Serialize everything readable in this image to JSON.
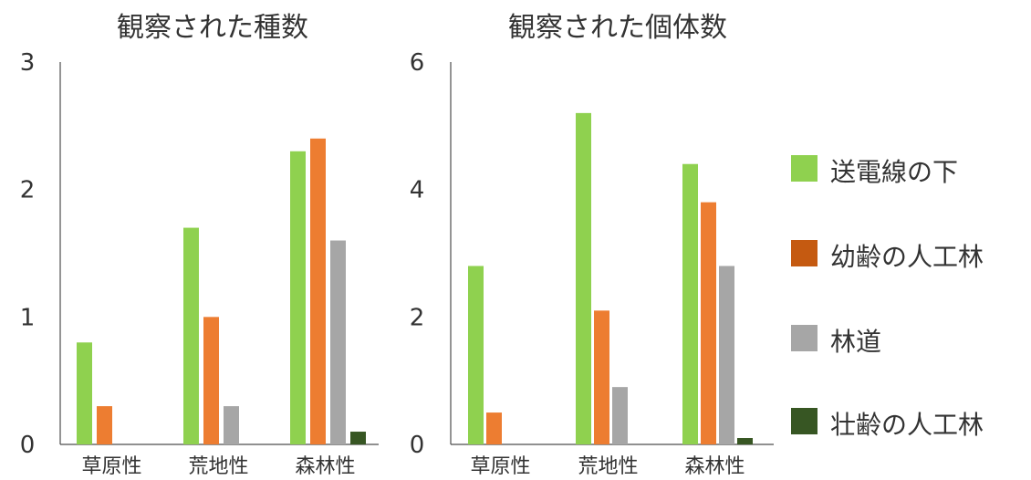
{
  "chart_data": [
    {
      "type": "bar",
      "title": "観察された種数",
      "categories": [
        "草原性",
        "荒地性",
        "森林性"
      ],
      "ylim": [
        0,
        3
      ],
      "yticks": [
        "0",
        "1",
        "2",
        "3"
      ],
      "series": [
        {
          "name": "送電線の下",
          "color": "#8fd14f",
          "values": [
            0.8,
            1.7,
            2.3
          ]
        },
        {
          "name": "幼齢の人工林",
          "color": "#ed7d31",
          "values": [
            0.3,
            1.0,
            2.4
          ]
        },
        {
          "name": "林道",
          "color": "#a6a6a6",
          "values": [
            0.0,
            0.3,
            1.6
          ]
        },
        {
          "name": "壮齢の人工林",
          "color": "#375623",
          "values": [
            0.0,
            0.0,
            0.1
          ]
        }
      ]
    },
    {
      "type": "bar",
      "title": "観察された個体数",
      "categories": [
        "草原性",
        "荒地性",
        "森林性"
      ],
      "ylim": [
        0,
        6
      ],
      "yticks": [
        "0",
        "2",
        "4",
        "6"
      ],
      "series": [
        {
          "name": "送電線の下",
          "color": "#8fd14f",
          "values": [
            2.8,
            5.2,
            4.4
          ]
        },
        {
          "name": "幼齢の人工林",
          "color": "#ed7d31",
          "values": [
            0.5,
            2.1,
            3.8
          ]
        },
        {
          "name": "林道",
          "color": "#a6a6a6",
          "values": [
            0.0,
            0.9,
            2.8
          ]
        },
        {
          "name": "壮齢の人工林",
          "color": "#375623",
          "values": [
            0.0,
            0.0,
            0.1
          ]
        }
      ]
    }
  ],
  "legend": {
    "position": "right",
    "items": [
      {
        "label": "送電線の下",
        "color": "#8fd14f"
      },
      {
        "label": "幼齢の人工林",
        "color": "#c55a11"
      },
      {
        "label": "林道",
        "color": "#a6a6a6"
      },
      {
        "label": "壮齢の人工林",
        "color": "#375623"
      }
    ]
  }
}
